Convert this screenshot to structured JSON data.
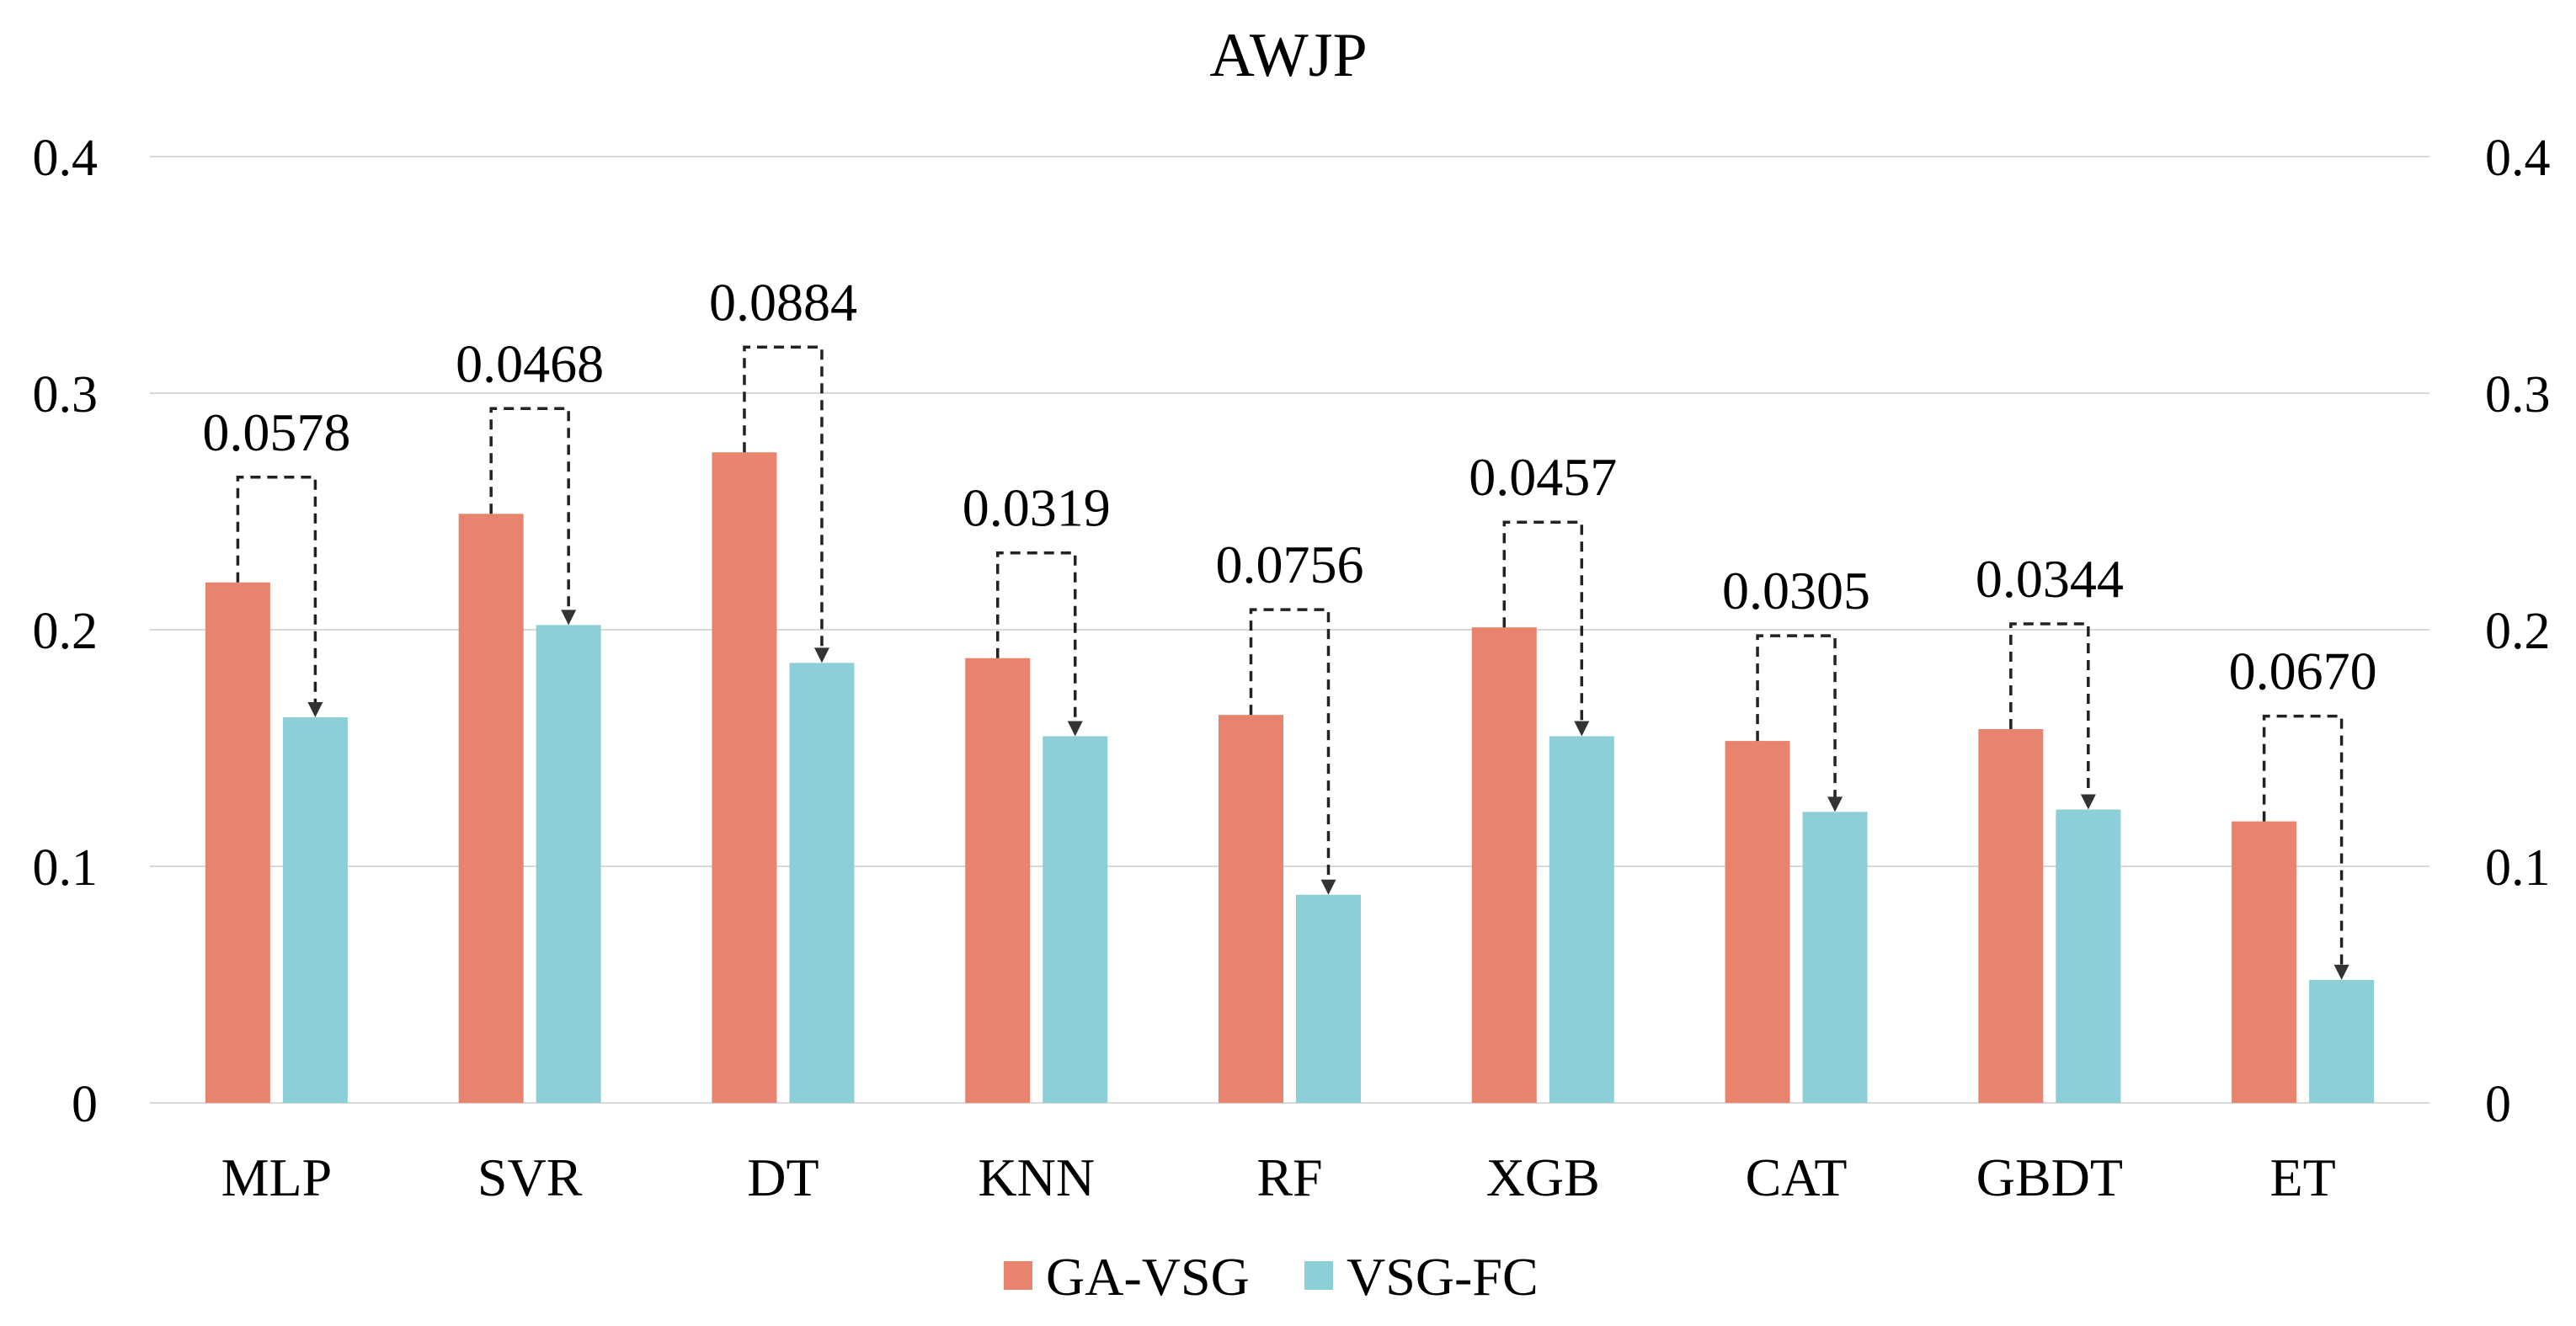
{
  "chart_data": {
    "type": "bar",
    "title": "AWJP",
    "categories": [
      "MLP",
      "SVR",
      "DT",
      "KNN",
      "RF",
      "XGB",
      "CAT",
      "GBDT",
      "ET"
    ],
    "series": [
      {
        "name": "GA-VSG",
        "color": "#E8836D",
        "values": [
          0.22,
          0.249,
          0.275,
          0.188,
          0.164,
          0.201,
          0.153,
          0.158,
          0.119
        ]
      },
      {
        "name": "VSG-FC",
        "color": "#8DCFD6",
        "values": [
          0.163,
          0.202,
          0.186,
          0.155,
          0.088,
          0.155,
          0.123,
          0.124,
          0.052
        ]
      }
    ],
    "differences": [
      "0.0578",
      "0.0468",
      "0.0884",
      "0.0319",
      "0.0756",
      "0.0457",
      "0.0305",
      "0.0344",
      "0.0670"
    ],
    "ylim": [
      0,
      0.4
    ],
    "yticks": [
      "0",
      "0.1",
      "0.2",
      "0.3",
      "0.4"
    ],
    "xlabel": "",
    "ylabel": "",
    "legend_position": "bottom",
    "grid": true
  }
}
